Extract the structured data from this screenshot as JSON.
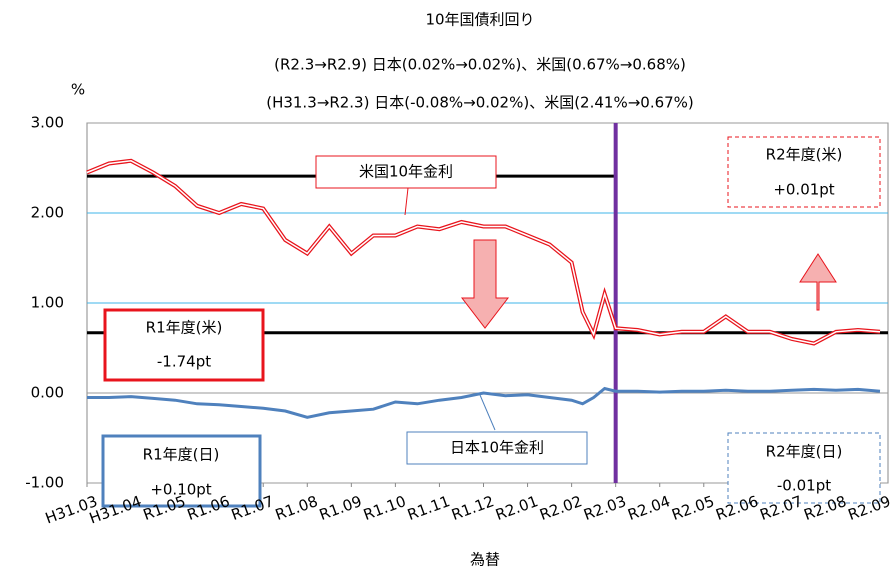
{
  "chart_data": {
    "type": "line",
    "title": "10年国債利回り",
    "subtitle": [
      "(R2.3→R2.9) 日本(0.02%→0.02%)、米国(0.67%→0.68%)",
      "(H31.3→R2.3) 日本(-0.08%→0.02%)、米国(2.41%→0.67%)"
    ],
    "y_label": "%",
    "x_label": "為替",
    "x": [
      0,
      0.5,
      1,
      1.5,
      2,
      2.5,
      3,
      3.5,
      4,
      4.5,
      5,
      5.5,
      6,
      6.5,
      7,
      7.5,
      8,
      8.5,
      9,
      9.5,
      10,
      10.5,
      11,
      11.25,
      11.5,
      11.75,
      12,
      12.5,
      13,
      13.5,
      14,
      14.5,
      15,
      15.5,
      16,
      16.5,
      17,
      17.5,
      18
    ],
    "series": [
      {
        "name": "米国10年金利",
        "color": "#e8141c",
        "values": [
          2.45,
          2.55,
          2.58,
          2.45,
          2.3,
          2.08,
          2.0,
          2.1,
          2.05,
          1.7,
          1.55,
          1.85,
          1.55,
          1.75,
          1.75,
          1.85,
          1.82,
          1.9,
          1.85,
          1.85,
          1.75,
          1.65,
          1.45,
          0.9,
          0.65,
          1.1,
          0.72,
          0.7,
          0.65,
          0.68,
          0.68,
          0.85,
          0.68,
          0.68,
          0.6,
          0.55,
          0.68,
          0.7,
          0.68
        ]
      },
      {
        "name": "日本10年金利",
        "color": "#4f81bd",
        "values": [
          -0.05,
          -0.05,
          -0.04,
          -0.06,
          -0.08,
          -0.12,
          -0.13,
          -0.15,
          -0.17,
          -0.2,
          -0.27,
          -0.22,
          -0.2,
          -0.18,
          -0.1,
          -0.12,
          -0.08,
          -0.05,
          0.0,
          -0.03,
          -0.02,
          -0.05,
          -0.08,
          -0.12,
          -0.05,
          0.05,
          0.02,
          0.02,
          0.01,
          0.02,
          0.02,
          0.03,
          0.02,
          0.02,
          0.03,
          0.04,
          0.03,
          0.04,
          0.02
        ]
      }
    ],
    "xlim": [
      0,
      18
    ],
    "xticks": [
      {
        "value": 0,
        "label": "H31.03"
      },
      {
        "value": 1,
        "label": "H31.04"
      },
      {
        "value": 2,
        "label": "R1.05"
      },
      {
        "value": 3,
        "label": "R1.06"
      },
      {
        "value": 4,
        "label": "R1.07"
      },
      {
        "value": 5,
        "label": "R1.08"
      },
      {
        "value": 6,
        "label": "R1.09"
      },
      {
        "value": 7,
        "label": "R1.10"
      },
      {
        "value": 8,
        "label": "R1.11"
      },
      {
        "value": 9,
        "label": "R1.12"
      },
      {
        "value": 10,
        "label": "R2.01"
      },
      {
        "value": 11,
        "label": "R2.02"
      },
      {
        "value": 12,
        "label": "R2.03"
      },
      {
        "value": 13,
        "label": "R2.04"
      },
      {
        "value": 14,
        "label": "R2.05"
      },
      {
        "value": 15,
        "label": "R2.06"
      },
      {
        "value": 16,
        "label": "R2.07"
      },
      {
        "value": 17,
        "label": "R2.08"
      },
      {
        "value": 18,
        "label": "R2.09"
      }
    ],
    "ylim": [
      -1,
      3
    ],
    "yticks": [
      {
        "value": -1,
        "label": "-1.00"
      },
      {
        "value": 0,
        "label": "0.00"
      },
      {
        "value": 1,
        "label": "1.00"
      },
      {
        "value": 2,
        "label": "2.00"
      },
      {
        "value": 3,
        "label": "3.00"
      }
    ],
    "grid": true,
    "hlines": [
      {
        "value": 2.41,
        "x_end": 12
      },
      {
        "value": 0.67,
        "x_end": 18
      }
    ],
    "vline": 12,
    "annotations": [
      {
        "label": "R1年度(米)",
        "text": "-1.74pt"
      },
      {
        "label": "R2年度(米)",
        "text": "+0.01pt"
      },
      {
        "label": "R1年度(日)",
        "text": "+0.10pt"
      },
      {
        "label": "R2年度(日)",
        "text": "-0.01pt"
      }
    ]
  }
}
